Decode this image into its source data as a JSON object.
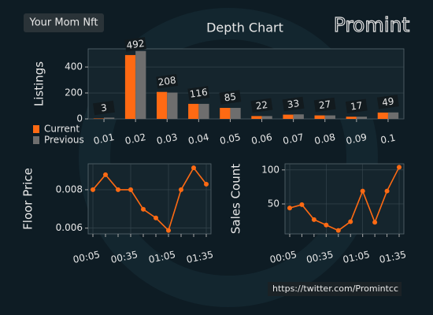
{
  "header": {
    "badge": "Your Mom Nft",
    "logo": "Promint"
  },
  "footer": "https://twitter.com/Promintcc",
  "chart_data": [
    {
      "type": "bar",
      "title": "Depth Chart",
      "y_label": "Listings",
      "categories": [
        "0.01",
        "0.02",
        "0.03",
        "0.04",
        "0.05",
        "0.06",
        "0.07",
        "0.08",
        "0.09",
        "0.1"
      ],
      "series": [
        {
          "name": "Current",
          "color": "#ff6a13",
          "values": [
            3,
            492,
            208,
            116,
            85,
            22,
            33,
            27,
            17,
            49
          ],
          "data_labels": true
        },
        {
          "name": "Previous",
          "color": "#6e6e6e",
          "values": [
            10,
            523,
            203,
            116,
            85,
            22,
            35,
            27,
            17,
            50
          ]
        }
      ],
      "ylim": [
        0,
        540
      ],
      "yticks": [
        0,
        200,
        400
      ],
      "grid": true,
      "legend": "lower left outside"
    },
    {
      "type": "line",
      "y_label": "Floor Price",
      "categories": [
        "00:05",
        null,
        null,
        "00:35",
        null,
        null,
        "01:05",
        null,
        null,
        "01:35"
      ],
      "values": [
        0.008,
        0.00878,
        0.008,
        0.008,
        0.00698,
        0.00653,
        0.00588,
        0.008,
        0.00914,
        0.00829
      ],
      "color": "#ff6a13",
      "ylim": [
        0.0057,
        0.00935
      ],
      "yticks": [
        0.006,
        0.008
      ],
      "grid": true
    },
    {
      "type": "line",
      "y_label": "Sales Count",
      "categories": [
        "00:05",
        null,
        null,
        "00:35",
        null,
        null,
        "01:05",
        null,
        null,
        "01:35"
      ],
      "values": [
        44,
        49,
        27,
        19,
        11,
        24,
        69,
        23,
        69,
        104
      ],
      "color": "#ff6a13",
      "ylim": [
        6,
        109
      ],
      "yticks": [
        50,
        100
      ],
      "grid": true
    }
  ]
}
